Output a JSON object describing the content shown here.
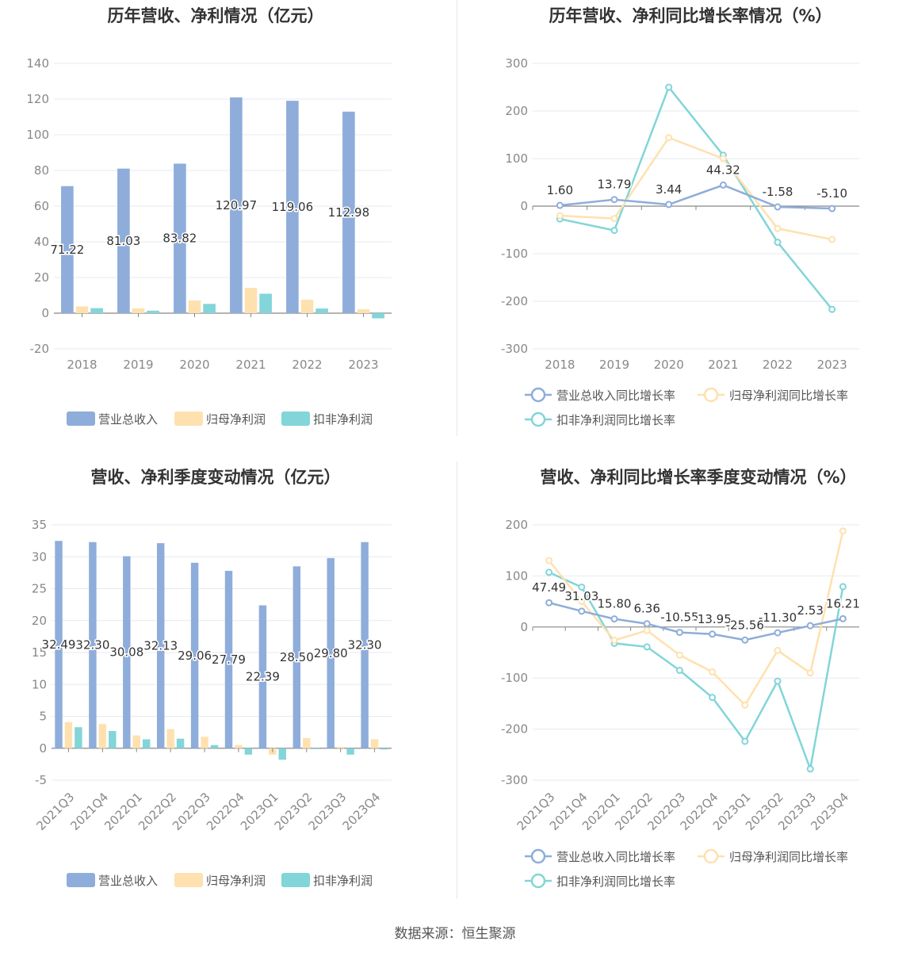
{
  "source": "数据来源：恒生聚源",
  "colors": {
    "revenue": "#8EADDA",
    "net_profit": "#FEE1AF",
    "deducted": "#82D5D8",
    "revenue_bar": "#8EADDA",
    "net_bar": "#FEE1AF",
    "ded_bar": "#82D5D8"
  },
  "charts": {
    "annual_amount": {
      "title": "历年营收、净利情况（亿元）",
      "legend": [
        "营业总收入",
        "归母净利润",
        "扣非净利润"
      ]
    },
    "annual_growth": {
      "title": "历年营收、净利同比增长率情况（%）",
      "legend": [
        "营业总收入同比增长率",
        "归母净利润同比增长率",
        "扣非净利润同比增长率"
      ]
    },
    "quarter_amount": {
      "title": "营收、净利季度变动情况（亿元）",
      "legend": [
        "营业总收入",
        "归母净利润",
        "扣非净利润"
      ]
    },
    "quarter_growth": {
      "title": "营收、净利同比增长率季度变动情况（%）",
      "legend": [
        "营业总收入同比增长率",
        "归母净利润同比增长率",
        "扣非净利润同比增长率"
      ]
    }
  },
  "chart_data": [
    {
      "type": "bar",
      "title": "历年营收、净利情况（亿元）",
      "categories": [
        "2018",
        "2019",
        "2020",
        "2021",
        "2022",
        "2023"
      ],
      "ylim": [
        -20,
        140
      ],
      "yticks": [
        -20,
        0,
        20,
        40,
        60,
        80,
        100,
        120,
        140
      ],
      "grid": true,
      "legend_position": "bottom",
      "series": [
        {
          "name": "营业总收入",
          "values": [
            71.22,
            81.03,
            83.82,
            120.97,
            119.06,
            112.98
          ],
          "labels": [
            "71.22",
            "81.03",
            "83.82",
            "120.97",
            "119.06",
            "112.98"
          ]
        },
        {
          "name": "归母净利润",
          "values": [
            3.8,
            2.7,
            7.1,
            14.2,
            7.5,
            2.2
          ]
        },
        {
          "name": "扣非净利润",
          "values": [
            2.8,
            1.4,
            5.2,
            10.9,
            2.6,
            -2.9
          ]
        }
      ]
    },
    {
      "type": "line",
      "title": "历年营收、净利同比增长率情况（%）",
      "categories": [
        "2018",
        "2019",
        "2020",
        "2021",
        "2022",
        "2023"
      ],
      "ylim": [
        -300,
        300
      ],
      "yticks": [
        -300,
        -200,
        -100,
        0,
        100,
        200,
        300
      ],
      "grid": true,
      "legend_position": "bottom",
      "series": [
        {
          "name": "营业总收入同比增长率",
          "values": [
            1.6,
            13.79,
            3.44,
            44.32,
            -1.58,
            -5.1
          ],
          "labels": [
            "1.60",
            "13.79",
            "3.44",
            "44.32",
            "-1.58",
            "-5.10"
          ]
        },
        {
          "name": "归母净利润同比增长率",
          "values": [
            -20,
            -26,
            144,
            100,
            -47,
            -70
          ]
        },
        {
          "name": "扣非净利润同比增长率",
          "values": [
            -27,
            -51,
            250,
            107,
            -76,
            -217
          ]
        }
      ]
    },
    {
      "type": "bar",
      "title": "营收、净利季度变动情况（亿元）",
      "categories": [
        "2021Q3",
        "2021Q4",
        "2022Q1",
        "2022Q2",
        "2022Q3",
        "2022Q4",
        "2023Q1",
        "2023Q2",
        "2023Q3",
        "2023Q4"
      ],
      "ylim": [
        -5,
        35
      ],
      "yticks": [
        -5,
        0,
        5,
        10,
        15,
        20,
        25,
        30,
        35
      ],
      "grid": true,
      "legend_position": "bottom",
      "series": [
        {
          "name": "营业总收入",
          "values": [
            32.49,
            32.3,
            30.08,
            32.13,
            29.06,
            27.79,
            22.39,
            28.5,
            29.8,
            32.3
          ],
          "labels": [
            "32.49",
            "32.30",
            "30.08",
            "32.13",
            "29.06",
            "27.79",
            "22.39",
            "28.50",
            "29.80",
            "32.30"
          ]
        },
        {
          "name": "归母净利润",
          "values": [
            4.1,
            3.8,
            2.0,
            3.0,
            1.8,
            0.5,
            -1.0,
            1.6,
            0.2,
            1.4
          ]
        },
        {
          "name": "扣非净利润",
          "values": [
            3.3,
            2.7,
            1.4,
            1.5,
            0.5,
            -1.0,
            -1.8,
            -0.1,
            -1.0,
            -0.2
          ]
        }
      ]
    },
    {
      "type": "line",
      "title": "营收、净利同比增长率季度变动情况（%）",
      "categories": [
        "2021Q3",
        "2021Q4",
        "2022Q1",
        "2022Q2",
        "2022Q3",
        "2022Q4",
        "2023Q1",
        "2023Q2",
        "2023Q3",
        "2023Q4"
      ],
      "ylim": [
        -300,
        200
      ],
      "yticks": [
        -300,
        -200,
        -100,
        0,
        100,
        200
      ],
      "grid": true,
      "legend_position": "bottom",
      "series": [
        {
          "name": "营业总收入同比增长率",
          "values": [
            47.49,
            31.03,
            15.8,
            6.36,
            -10.55,
            -13.95,
            -25.56,
            -11.3,
            2.53,
            16.21
          ],
          "labels": [
            "47.49",
            "31.03",
            "15.80",
            "6.36",
            "-10.55",
            "-13.95",
            "-25.56",
            "-11.30",
            "2.53",
            "16.21"
          ]
        },
        {
          "name": "归母净利润同比增长率",
          "values": [
            130,
            50,
            -26,
            -7,
            -55,
            -88,
            -153,
            -46,
            -90,
            188
          ]
        },
        {
          "name": "扣非净利润同比增长率",
          "values": [
            107,
            78,
            -32,
            -39,
            -85,
            -138,
            -224,
            -106,
            -278,
            79
          ]
        }
      ]
    }
  ]
}
